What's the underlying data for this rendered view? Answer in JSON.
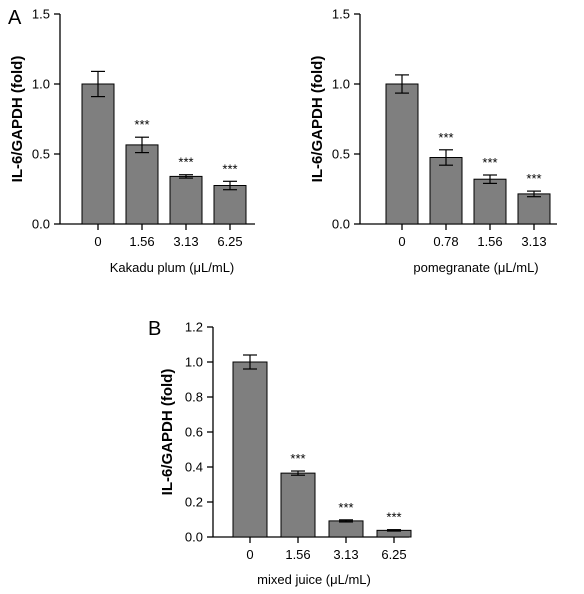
{
  "panels": [
    {
      "letter": "A"
    },
    {
      "letter": ""
    },
    {
      "letter": "B"
    }
  ],
  "chart_data": [
    {
      "type": "bar",
      "categories": [
        "0",
        "1.56",
        "3.13",
        "6.25"
      ],
      "values": [
        1.0,
        0.565,
        0.34,
        0.275
      ],
      "errors": [
        0.09,
        0.055,
        0.012,
        0.03
      ],
      "significance": [
        "",
        "***",
        "***",
        "***"
      ],
      "xlabel": "Kakadu plum (μL/mL)",
      "ylabel": "IL-6/GAPDH (fold)",
      "ylim": [
        0,
        1.5
      ],
      "yticks": [
        "0.0",
        "0.5",
        "1.0",
        "1.5"
      ],
      "bar_color": "#7f7f7f"
    },
    {
      "type": "bar",
      "categories": [
        "0",
        "0.78",
        "1.56",
        "3.13"
      ],
      "values": [
        1.0,
        0.475,
        0.32,
        0.215
      ],
      "errors": [
        0.065,
        0.055,
        0.03,
        0.02
      ],
      "significance": [
        "",
        "***",
        "***",
        "***"
      ],
      "xlabel": "pomegranate (μL/mL)",
      "ylabel": "IL-6/GAPDH (fold)",
      "ylim": [
        0,
        1.5
      ],
      "yticks": [
        "0.0",
        "0.5",
        "1.0",
        "1.5"
      ],
      "bar_color": "#7f7f7f"
    },
    {
      "type": "bar",
      "categories": [
        "0",
        "1.56",
        "3.13",
        "6.25"
      ],
      "values": [
        1.0,
        0.365,
        0.092,
        0.038
      ],
      "errors": [
        0.04,
        0.012,
        0.006,
        0.004
      ],
      "significance": [
        "",
        "***",
        "***",
        "***"
      ],
      "xlabel": "mixed juice (μL/mL)",
      "ylabel": "IL-6/GAPDH (fold)",
      "ylim": [
        0,
        1.2
      ],
      "yticks": [
        "0.0",
        "0.2",
        "0.4",
        "0.6",
        "0.8",
        "1.0",
        "1.2"
      ],
      "bar_color": "#7f7f7f"
    }
  ]
}
